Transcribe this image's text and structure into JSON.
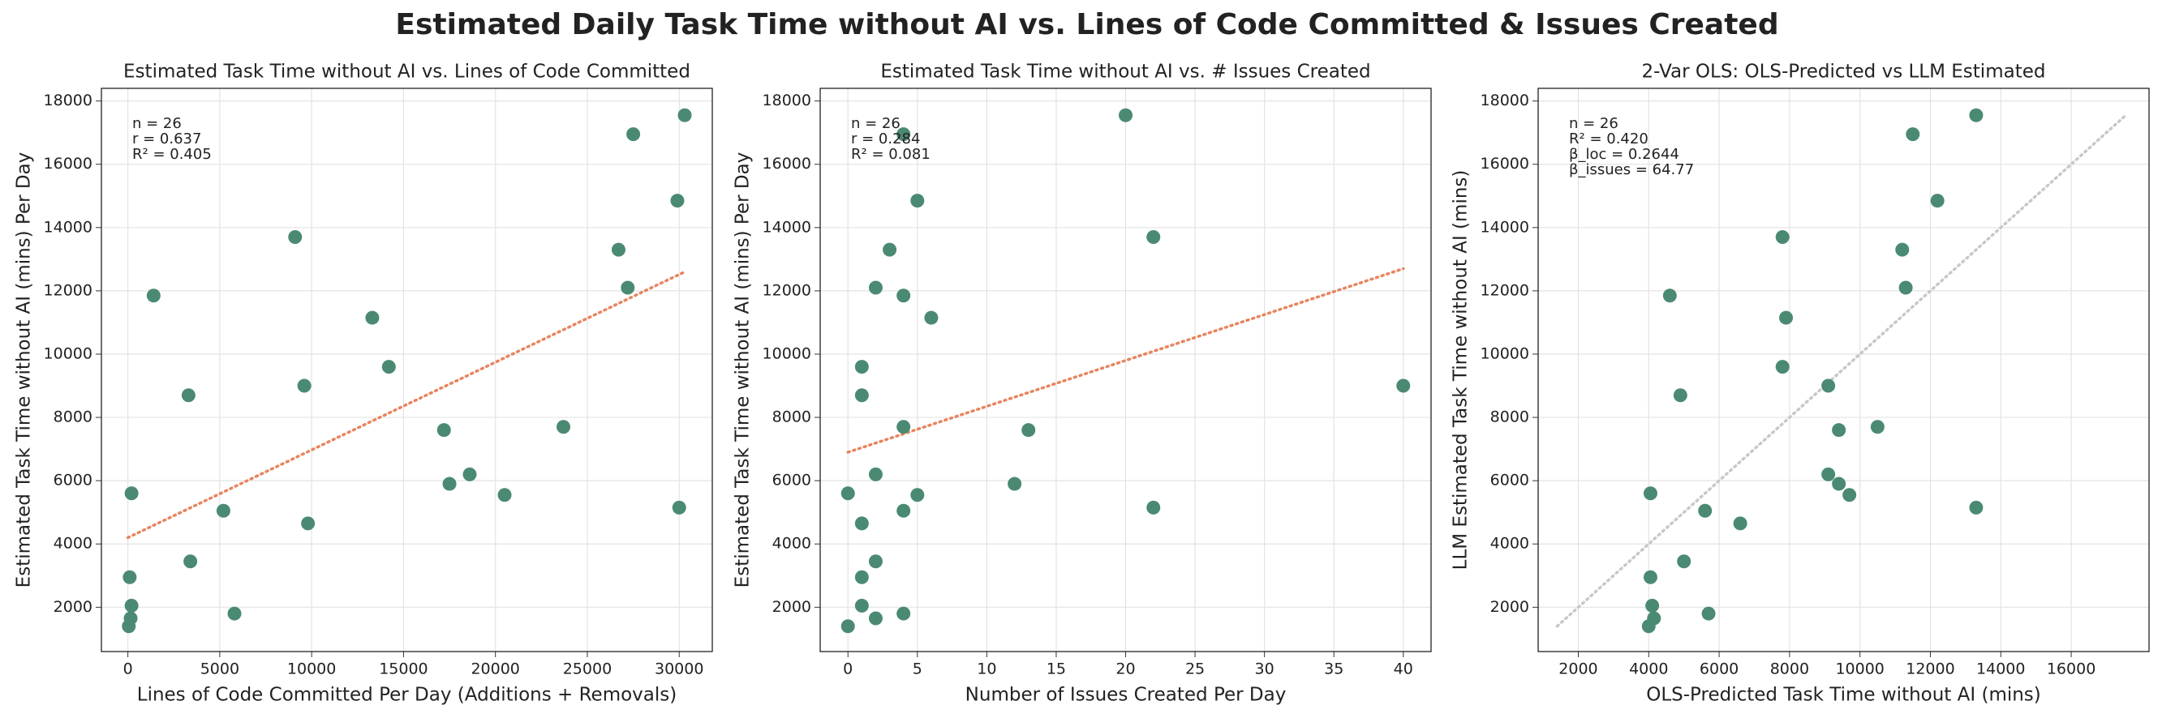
{
  "title": "Estimated Daily Task Time without AI vs. Lines of Code Committed & Issues Created",
  "chart_data": [
    {
      "type": "scatter",
      "title": "Estimated Task Time without AI vs. Lines of Code Committed",
      "xlabel": "Lines of Code Committed Per Day (Additions + Removals)",
      "ylabel": "Estimated Task Time without AI (mins) Per Day",
      "annotations": [
        "n = 26",
        "r = 0.637",
        "R² = 0.405"
      ],
      "color": "#4b8a72",
      "grid": true,
      "x": [
        30300,
        27500,
        29900,
        9100,
        26700,
        27200,
        1400,
        13300,
        14200,
        9600,
        3300,
        23700,
        17200,
        18600,
        17500,
        200,
        20500,
        30000,
        5200,
        9800,
        3400,
        100,
        200,
        5800,
        150,
        50
      ],
      "values": [
        17550,
        16950,
        14850,
        13700,
        13300,
        12100,
        11850,
        11150,
        9600,
        9000,
        8700,
        7700,
        7600,
        6200,
        5900,
        5600,
        5550,
        5150,
        5050,
        4650,
        3450,
        2950,
        2050,
        1800,
        1650,
        1400
      ],
      "trend": {
        "x": [
          0,
          30300
        ],
        "y": [
          4200,
          12600
        ],
        "color": "#e8845e"
      },
      "xlim": [
        -1440,
        31800
      ],
      "xticks": [
        0,
        5000,
        10000,
        15000,
        20000,
        25000,
        30000
      ],
      "ylim": [
        600,
        18400
      ],
      "yticks": [
        2000,
        4000,
        6000,
        8000,
        10000,
        12000,
        14000,
        16000,
        18000
      ]
    },
    {
      "type": "scatter",
      "title": "Estimated Task Time without AI vs. # Issues Created",
      "xlabel": "Number of Issues Created Per Day",
      "ylabel": "Estimated Task Time without AI (mins) Per Day",
      "annotations": [
        "n = 26",
        "r = 0.284",
        "R² = 0.081"
      ],
      "color": "#4b8a72",
      "grid": true,
      "x": [
        20,
        4,
        5,
        22,
        3,
        2,
        4,
        6,
        1,
        40,
        1,
        4,
        13,
        2,
        12,
        0,
        5,
        22,
        4,
        1,
        2,
        1,
        1,
        4,
        2,
        0
      ],
      "values": [
        17550,
        16950,
        14850,
        13700,
        13300,
        12100,
        11850,
        11150,
        9600,
        9000,
        8700,
        7700,
        7600,
        6200,
        5900,
        5600,
        5550,
        5150,
        5050,
        4650,
        3450,
        2950,
        2050,
        1800,
        1650,
        1400
      ],
      "trend": {
        "x": [
          0,
          40
        ],
        "y": [
          6900,
          12700
        ],
        "color": "#e8845e"
      },
      "xlim": [
        -2,
        42
      ],
      "xticks": [
        0,
        5,
        10,
        15,
        20,
        25,
        30,
        35,
        40
      ],
      "ylim": [
        600,
        18400
      ],
      "yticks": [
        2000,
        4000,
        6000,
        8000,
        10000,
        12000,
        14000,
        16000,
        18000
      ]
    },
    {
      "type": "scatter",
      "title": "2-Var OLS: OLS-Predicted vs LLM Estimated",
      "xlabel": "OLS-Predicted Task Time without AI (mins)",
      "ylabel": "LLM Estimated Task Time without AI (mins)",
      "annotations": [
        "n = 26",
        "R² = 0.420",
        "β_loc = 0.2644",
        "β_issues = 64.77"
      ],
      "color": "#4b8a72",
      "grid": true,
      "x": [
        13300,
        11500,
        12200,
        7800,
        11200,
        11300,
        4600,
        7900,
        7800,
        9100,
        4900,
        10500,
        9400,
        9100,
        9400,
        4050,
        9700,
        13300,
        5600,
        6600,
        5000,
        4050,
        4100,
        5700,
        4150,
        4000
      ],
      "values": [
        17550,
        16950,
        14850,
        13700,
        13300,
        12100,
        11850,
        11150,
        9600,
        9000,
        8700,
        7700,
        7600,
        6200,
        5900,
        5600,
        5550,
        5150,
        5050,
        4650,
        3450,
        2950,
        2050,
        1800,
        1650,
        1400
      ],
      "trend": {
        "x": [
          1400,
          17550
        ],
        "y": [
          1400,
          17550
        ],
        "color": "#c8c8c8"
      },
      "xlim": [
        860,
        18210
      ],
      "xticks": [
        2000,
        4000,
        6000,
        8000,
        10000,
        12000,
        14000,
        16000
      ],
      "ylim": [
        600,
        18400
      ],
      "yticks": [
        2000,
        4000,
        6000,
        8000,
        10000,
        12000,
        14000,
        16000,
        18000
      ]
    }
  ]
}
